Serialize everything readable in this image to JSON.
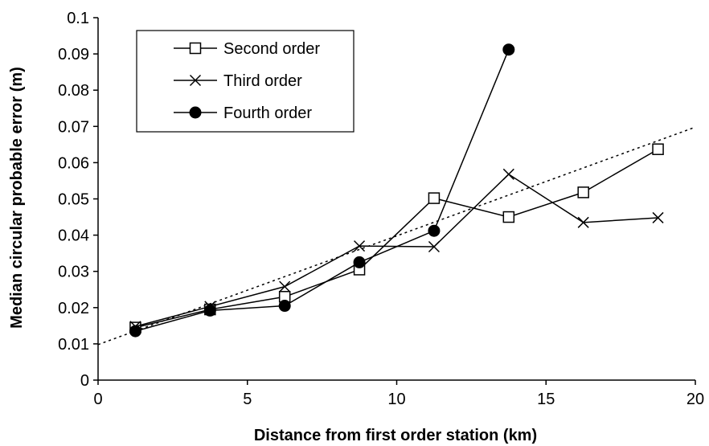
{
  "chart_data": {
    "type": "line",
    "xlabel": "Distance from first order station (km)",
    "ylabel": "Median circular probable error (m)",
    "xlim": [
      0,
      20
    ],
    "ylim": [
      0,
      0.1
    ],
    "xticks": [
      0,
      5,
      10,
      15,
      20
    ],
    "xtick_labels": [
      "0",
      "5",
      "10",
      "15",
      "20"
    ],
    "yticks": [
      0,
      0.01,
      0.02,
      0.03,
      0.04,
      0.05,
      0.06,
      0.07,
      0.08,
      0.09,
      0.1
    ],
    "ytick_labels": [
      "0",
      "0.01",
      "0.02",
      "0.03",
      "0.04",
      "0.05",
      "0.06",
      "0.07",
      "0.08",
      "0.09",
      "0.1"
    ],
    "grid": false,
    "legend_position": "top-left",
    "series": [
      {
        "name": "Second order",
        "marker": "open-square",
        "x": [
          1.25,
          3.75,
          6.25,
          8.75,
          11.25,
          13.75,
          16.25,
          18.75
        ],
        "y": [
          0.0145,
          0.0195,
          0.023,
          0.0305,
          0.0502,
          0.045,
          0.0518,
          0.0637
        ]
      },
      {
        "name": "Third order",
        "marker": "x",
        "x": [
          1.25,
          3.75,
          6.25,
          8.75,
          11.25,
          13.75,
          16.25,
          18.75
        ],
        "y": [
          0.0148,
          0.0203,
          0.0258,
          0.037,
          0.0368,
          0.0568,
          0.0435,
          0.0448
        ]
      },
      {
        "name": "Fourth order",
        "marker": "filled-circle",
        "x": [
          1.25,
          3.75,
          6.25,
          8.75,
          11.25,
          13.75
        ],
        "y": [
          0.0135,
          0.0192,
          0.0205,
          0.0325,
          0.0412,
          0.0912
        ]
      }
    ],
    "trendline": {
      "style": "dotted",
      "x": [
        0,
        20
      ],
      "y": [
        0.0098,
        0.0698
      ]
    }
  }
}
